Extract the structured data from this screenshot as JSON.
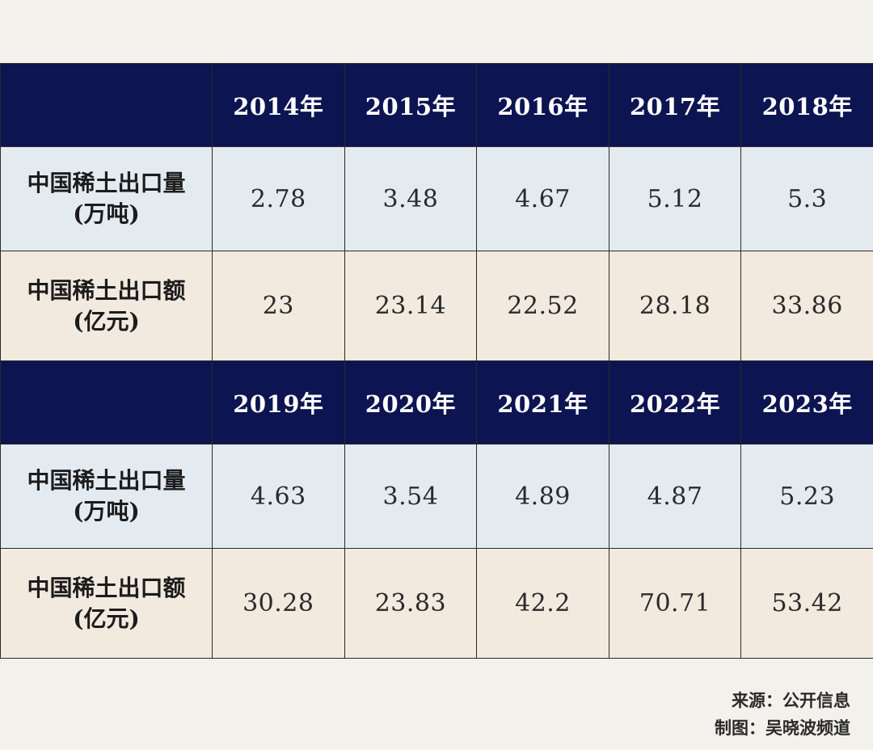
{
  "chart_data": {
    "type": "table",
    "row_labels": {
      "quantity": "中国稀土出口量",
      "quantity_unit": "(万吨)",
      "value": "中国稀土出口额",
      "value_unit": "(亿元)"
    },
    "blocks": [
      {
        "years": [
          "2014年",
          "2015年",
          "2016年",
          "2017年",
          "2018年"
        ],
        "quantity": [
          "2.78",
          "3.48",
          "4.67",
          "5.12",
          "5.3"
        ],
        "value": [
          "23",
          "23.14",
          "22.52",
          "28.18",
          "33.86"
        ]
      },
      {
        "years": [
          "2019年",
          "2020年",
          "2021年",
          "2022年",
          "2023年"
        ],
        "quantity": [
          "4.63",
          "3.54",
          "4.89",
          "4.87",
          "5.23"
        ],
        "value": [
          "30.28",
          "23.83",
          "42.2",
          "70.71",
          "53.42"
        ]
      }
    ]
  },
  "footer": {
    "source": "来源：公开信息",
    "credit": "制图：吴晓波频道"
  },
  "colors": {
    "header_bg": "#0d1452",
    "quantity_row_bg": "#e3ebf1",
    "value_row_bg": "#f2e9df",
    "page_bg": "#f3f1ec"
  }
}
